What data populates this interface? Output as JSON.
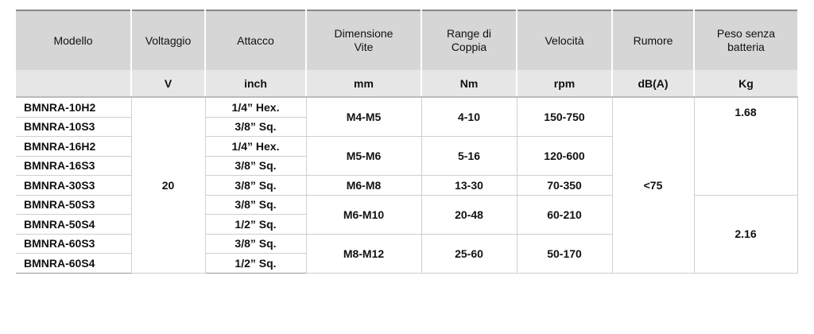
{
  "table": {
    "header": [
      "Modello",
      "Voltaggio",
      "Attacco",
      "Dimensione Vite",
      "Range di Coppia",
      "Velocità",
      "Rumore",
      "Peso senza batteria"
    ],
    "units": [
      "V",
      "inch",
      "mm",
      "Nm",
      "rpm",
      "dB(A)",
      "Kg"
    ],
    "rows": [
      [
        "BMNRA-10H2",
        "20",
        "1/4” Hex.",
        "M4-M5",
        "4-10",
        "150-750",
        "<75",
        "1.68"
      ],
      [
        "BMNRA-10S3",
        "3/8” Sq."
      ],
      [
        "BMNRA-16H2",
        "1/4” Hex.",
        "M5-M6",
        "5-16",
        "120-600"
      ],
      [
        "BMNRA-16S3",
        "3/8” Sq."
      ],
      [
        "BMNRA-30S3",
        "3/8” Sq.",
        "M6-M8",
        "13-30",
        "70-350"
      ],
      [
        "BMNRA-50S3",
        "3/8” Sq.",
        "M6-M10",
        "20-48",
        "60-210",
        "2.16"
      ],
      [
        "BMNRA-50S4",
        "1/2” Sq."
      ],
      [
        "BMNRA-60S3",
        "3/8” Sq.",
        "M8-M12",
        "25-60",
        "50-170"
      ],
      [
        "BMNRA-60S4",
        "1/2” Sq."
      ]
    ]
  }
}
